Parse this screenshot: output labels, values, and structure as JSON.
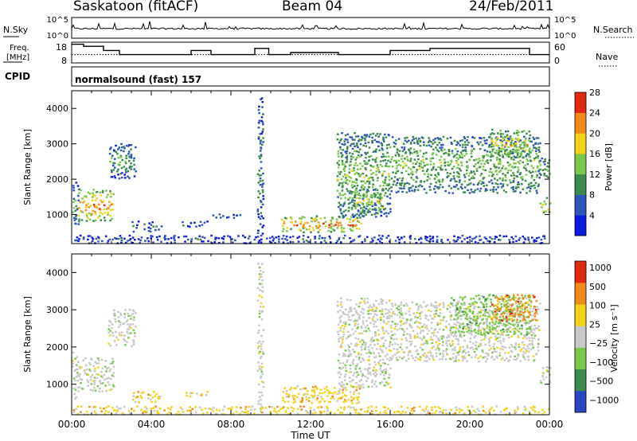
{
  "header": {
    "station": "Saskatoon (fitACF)",
    "beam": "Beam 04",
    "date": "24/Feb/2011"
  },
  "strip_noise": {
    "left_label": "N.Sky",
    "right_label": "N.Search",
    "left_ticks": [
      "10^5",
      "10^0"
    ],
    "right_ticks": [
      "10^5",
      "10^0"
    ]
  },
  "strip_freq": {
    "left_label_1": "Freq.",
    "left_label_2": "[MHz]",
    "right_label": "Nave",
    "left_ticks": [
      "18",
      "8"
    ],
    "right_ticks": [
      "60",
      "0"
    ],
    "freq_mhz": [
      [
        0.0,
        17
      ],
      [
        0.6,
        16
      ],
      [
        1.6,
        14
      ],
      [
        2.4,
        12
      ],
      [
        6.0,
        14
      ],
      [
        7.0,
        12
      ],
      [
        8.2,
        12
      ],
      [
        9.2,
        15
      ],
      [
        9.9,
        12
      ],
      [
        11.0,
        13
      ],
      [
        13.4,
        12
      ],
      [
        14.4,
        12
      ],
      [
        16.0,
        14
      ],
      [
        18.0,
        15
      ],
      [
        23.0,
        12
      ],
      [
        24.0,
        12
      ]
    ],
    "nave": [
      [
        0.0,
        24
      ],
      [
        24.0,
        24
      ]
    ]
  },
  "cpid": {
    "label": "CPID",
    "text": "normalsound (fast) 157"
  },
  "x_axis": {
    "title": "Time UT",
    "ticks": [
      "00:00",
      "04:00",
      "08:00",
      "12:00",
      "16:00",
      "20:00",
      "00:00"
    ]
  },
  "chart_data": [
    {
      "type": "heatmap",
      "name": "power_panel",
      "xlabel": "Time UT",
      "ylabel": "Slant Range [km]",
      "xlim": [
        0,
        24
      ],
      "ylim": [
        180,
        4500
      ],
      "y_ticks": [
        "1000",
        "2000",
        "3000",
        "4000"
      ],
      "colorbar": {
        "title": "Power [dB]",
        "labels": [
          "4",
          "8",
          "12",
          "16",
          "20",
          "24",
          "28"
        ],
        "colors": [
          "#0b1bde",
          "#2e55b8",
          "#3d8a4d",
          "#7ac74e",
          "#f2d21b",
          "#f08a1a",
          "#e02a10"
        ]
      },
      "regions": [
        {
          "t": [
            0.0,
            0.35
          ],
          "r": [
            600,
            1900
          ],
          "level": 0.4
        },
        {
          "t": [
            0.3,
            2.1
          ],
          "r": [
            800,
            1700
          ],
          "level": 0.85
        },
        {
          "t": [
            1.8,
            3.2
          ],
          "r": [
            2000,
            3000
          ],
          "level": 0.4
        },
        {
          "t": [
            3.0,
            4.5
          ],
          "r": [
            500,
            800
          ],
          "level": 0.3
        },
        {
          "t": [
            5.5,
            6.8
          ],
          "r": [
            650,
            800
          ],
          "level": 0.35
        },
        {
          "t": [
            7.0,
            8.5
          ],
          "r": [
            900,
            1000
          ],
          "level": 0.3
        },
        {
          "t": [
            9.3,
            9.6
          ],
          "r": [
            300,
            4300
          ],
          "level": 0.3
        },
        {
          "t": [
            10.5,
            14.5
          ],
          "r": [
            480,
            950
          ],
          "level": 0.85
        },
        {
          "t": [
            13.3,
            16.0
          ],
          "r": [
            900,
            3300
          ],
          "level": 0.5
        },
        {
          "t": [
            14.0,
            15.6
          ],
          "r": [
            1000,
            1700
          ],
          "level": 0.65
        },
        {
          "t": [
            16.0,
            23.5
          ],
          "r": [
            1600,
            3200
          ],
          "level": 0.5
        },
        {
          "t": [
            21.0,
            23.0
          ],
          "r": [
            2600,
            3400
          ],
          "level": 0.7
        },
        {
          "t": [
            23.5,
            24.0
          ],
          "r": [
            1000,
            1500
          ],
          "level": 0.75
        },
        {
          "t": [
            23.4,
            24.0
          ],
          "r": [
            2000,
            2600
          ],
          "level": 0.45
        },
        {
          "t": [
            0.0,
            24.0
          ],
          "r": [
            180,
            400
          ],
          "level": 0.25
        }
      ]
    },
    {
      "type": "heatmap",
      "name": "velocity_panel",
      "xlabel": "Time UT",
      "ylabel": "Slant Range [km]",
      "xlim": [
        0,
        24
      ],
      "ylim": [
        180,
        4500
      ],
      "y_ticks": [
        "1000",
        "2000",
        "3000",
        "4000"
      ],
      "colorbar": {
        "title": "Velocity [m s⁻¹]",
        "labels": [
          "1000",
          "500",
          "100",
          "25",
          "−25",
          "−100",
          "−500",
          "−1000"
        ],
        "colors": [
          "#2a45c2",
          "#3d8a4d",
          "#7ac74e",
          "#c8c8c8",
          "#f2d21b",
          "#f08a1a",
          "#e02a10"
        ]
      },
      "regions": [
        {
          "t": [
            0.0,
            0.35
          ],
          "r": [
            600,
            1900
          ],
          "class": 3
        },
        {
          "t": [
            0.3,
            2.1
          ],
          "r": [
            800,
            1700
          ],
          "class": 3
        },
        {
          "t": [
            1.8,
            3.2
          ],
          "r": [
            2000,
            3000
          ],
          "class": 3
        },
        {
          "t": [
            3.0,
            4.5
          ],
          "r": [
            500,
            800
          ],
          "class": 4
        },
        {
          "t": [
            5.5,
            6.8
          ],
          "r": [
            650,
            800
          ],
          "class": 4
        },
        {
          "t": [
            9.3,
            9.6
          ],
          "r": [
            300,
            4300
          ],
          "class": 3
        },
        {
          "t": [
            10.5,
            14.5
          ],
          "r": [
            480,
            950
          ],
          "class": 4
        },
        {
          "t": [
            13.3,
            16.0
          ],
          "r": [
            900,
            3300
          ],
          "class": 3
        },
        {
          "t": [
            16.0,
            23.5
          ],
          "r": [
            1600,
            3200
          ],
          "class": 3
        },
        {
          "t": [
            19.0,
            23.0
          ],
          "r": [
            2300,
            3400
          ],
          "class": 2
        },
        {
          "t": [
            21.0,
            23.3
          ],
          "r": [
            2700,
            3400
          ],
          "class": 5
        },
        {
          "t": [
            23.5,
            24.0
          ],
          "r": [
            1000,
            1500
          ],
          "class": 3
        },
        {
          "t": [
            0.0,
            24.0
          ],
          "r": [
            180,
            400
          ],
          "class": 4
        }
      ]
    }
  ]
}
